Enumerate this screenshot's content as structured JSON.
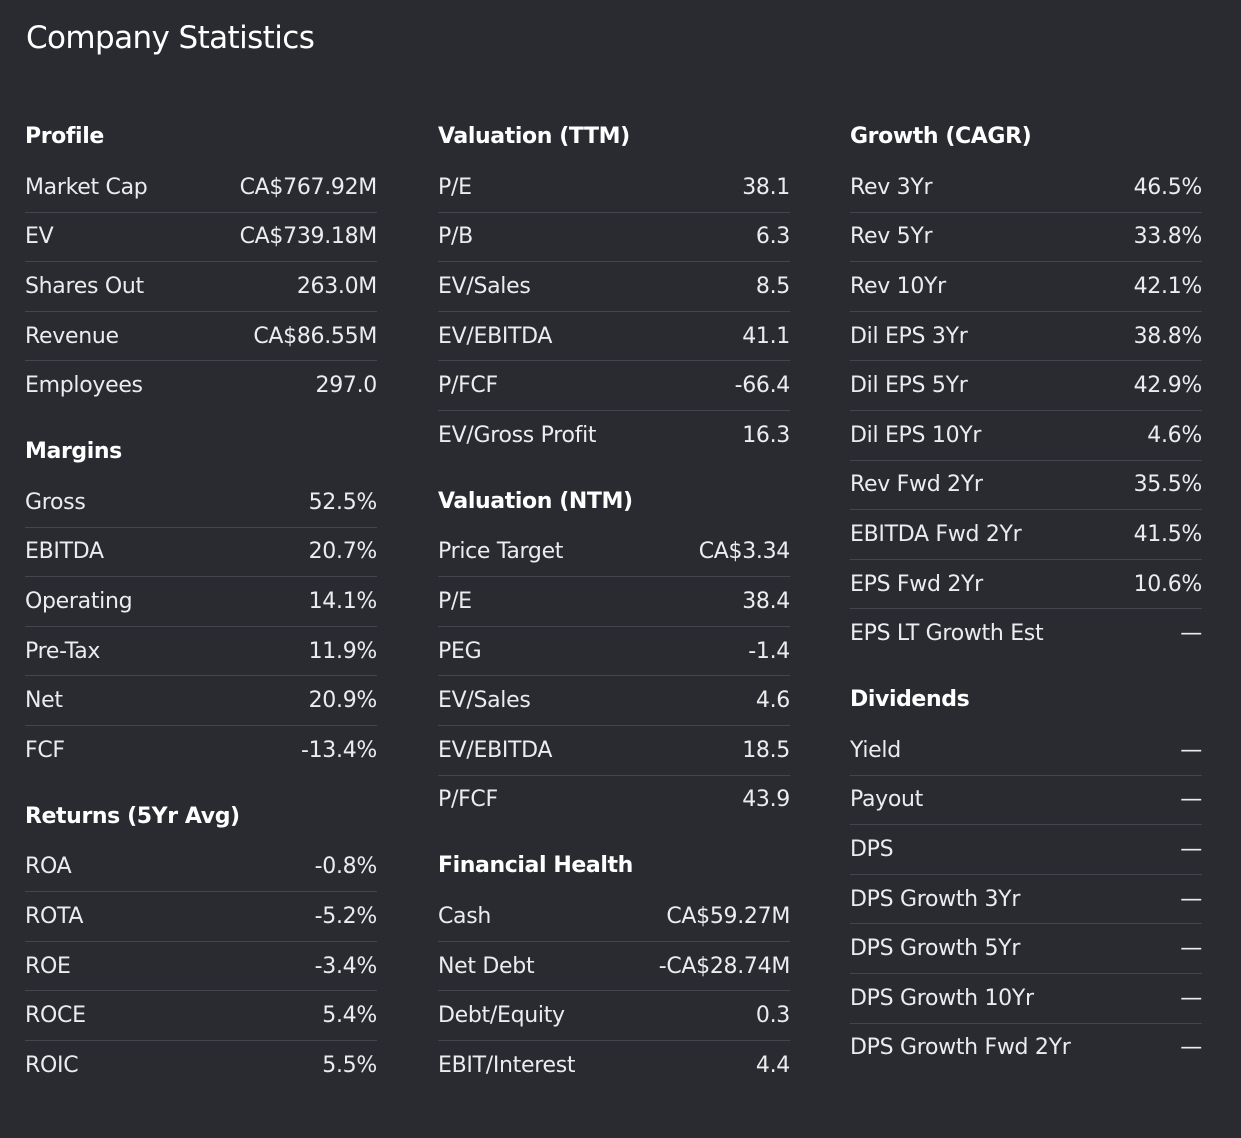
{
  "title": "Company Statistics",
  "columns": [
    {
      "sections": [
        {
          "title": "Profile",
          "rows": [
            {
              "label": "Market Cap",
              "value": "CA$767.92M"
            },
            {
              "label": "EV",
              "value": "CA$739.18M"
            },
            {
              "label": "Shares Out",
              "value": "263.0M"
            },
            {
              "label": "Revenue",
              "value": "CA$86.55M"
            },
            {
              "label": "Employees",
              "value": "297.0"
            }
          ]
        },
        {
          "title": "Margins",
          "rows": [
            {
              "label": "Gross",
              "value": "52.5%"
            },
            {
              "label": "EBITDA",
              "value": "20.7%"
            },
            {
              "label": "Operating",
              "value": "14.1%"
            },
            {
              "label": "Pre-Tax",
              "value": "11.9%"
            },
            {
              "label": "Net",
              "value": "20.9%"
            },
            {
              "label": "FCF",
              "value": "-13.4%"
            }
          ]
        },
        {
          "title": "Returns (5Yr Avg)",
          "rows": [
            {
              "label": "ROA",
              "value": "-0.8%"
            },
            {
              "label": "ROTA",
              "value": "-5.2%"
            },
            {
              "label": "ROE",
              "value": "-3.4%"
            },
            {
              "label": "ROCE",
              "value": "5.4%"
            },
            {
              "label": "ROIC",
              "value": "5.5%"
            }
          ]
        }
      ]
    },
    {
      "sections": [
        {
          "title": "Valuation (TTM)",
          "rows": [
            {
              "label": "P/E",
              "value": "38.1"
            },
            {
              "label": "P/B",
              "value": "6.3"
            },
            {
              "label": "EV/Sales",
              "value": "8.5"
            },
            {
              "label": "EV/EBITDA",
              "value": "41.1"
            },
            {
              "label": "P/FCF",
              "value": "-66.4"
            },
            {
              "label": "EV/Gross Profit",
              "value": "16.3"
            }
          ]
        },
        {
          "title": "Valuation (NTM)",
          "rows": [
            {
              "label": "Price Target",
              "value": "CA$3.34"
            },
            {
              "label": "P/E",
              "value": "38.4"
            },
            {
              "label": "PEG",
              "value": "-1.4"
            },
            {
              "label": "EV/Sales",
              "value": "4.6"
            },
            {
              "label": "EV/EBITDA",
              "value": "18.5"
            },
            {
              "label": "P/FCF",
              "value": "43.9"
            }
          ]
        },
        {
          "title": "Financial Health",
          "rows": [
            {
              "label": "Cash",
              "value": "CA$59.27M"
            },
            {
              "label": "Net Debt",
              "value": "-CA$28.74M"
            },
            {
              "label": "Debt/Equity",
              "value": "0.3"
            },
            {
              "label": "EBIT/Interest",
              "value": "4.4"
            }
          ]
        }
      ]
    },
    {
      "sections": [
        {
          "title": "Growth (CAGR)",
          "rows": [
            {
              "label": "Rev 3Yr",
              "value": "46.5%"
            },
            {
              "label": "Rev 5Yr",
              "value": "33.8%"
            },
            {
              "label": "Rev 10Yr",
              "value": "42.1%"
            },
            {
              "label": "Dil EPS 3Yr",
              "value": "38.8%"
            },
            {
              "label": "Dil EPS 5Yr",
              "value": "42.9%"
            },
            {
              "label": "Dil EPS 10Yr",
              "value": "4.6%"
            },
            {
              "label": "Rev Fwd 2Yr",
              "value": "35.5%"
            },
            {
              "label": "EBITDA Fwd 2Yr",
              "value": "41.5%"
            },
            {
              "label": "EPS Fwd 2Yr",
              "value": "10.6%"
            },
            {
              "label": "EPS LT Growth Est",
              "value": "—"
            }
          ]
        },
        {
          "title": "Dividends",
          "rows": [
            {
              "label": "Yield",
              "value": "—"
            },
            {
              "label": "Payout",
              "value": "—"
            },
            {
              "label": "DPS",
              "value": "—"
            },
            {
              "label": "DPS Growth 3Yr",
              "value": "—"
            },
            {
              "label": "DPS Growth 5Yr",
              "value": "—"
            },
            {
              "label": "DPS Growth 10Yr",
              "value": "—"
            },
            {
              "label": "DPS Growth Fwd 2Yr",
              "value": "—"
            }
          ]
        }
      ]
    }
  ]
}
